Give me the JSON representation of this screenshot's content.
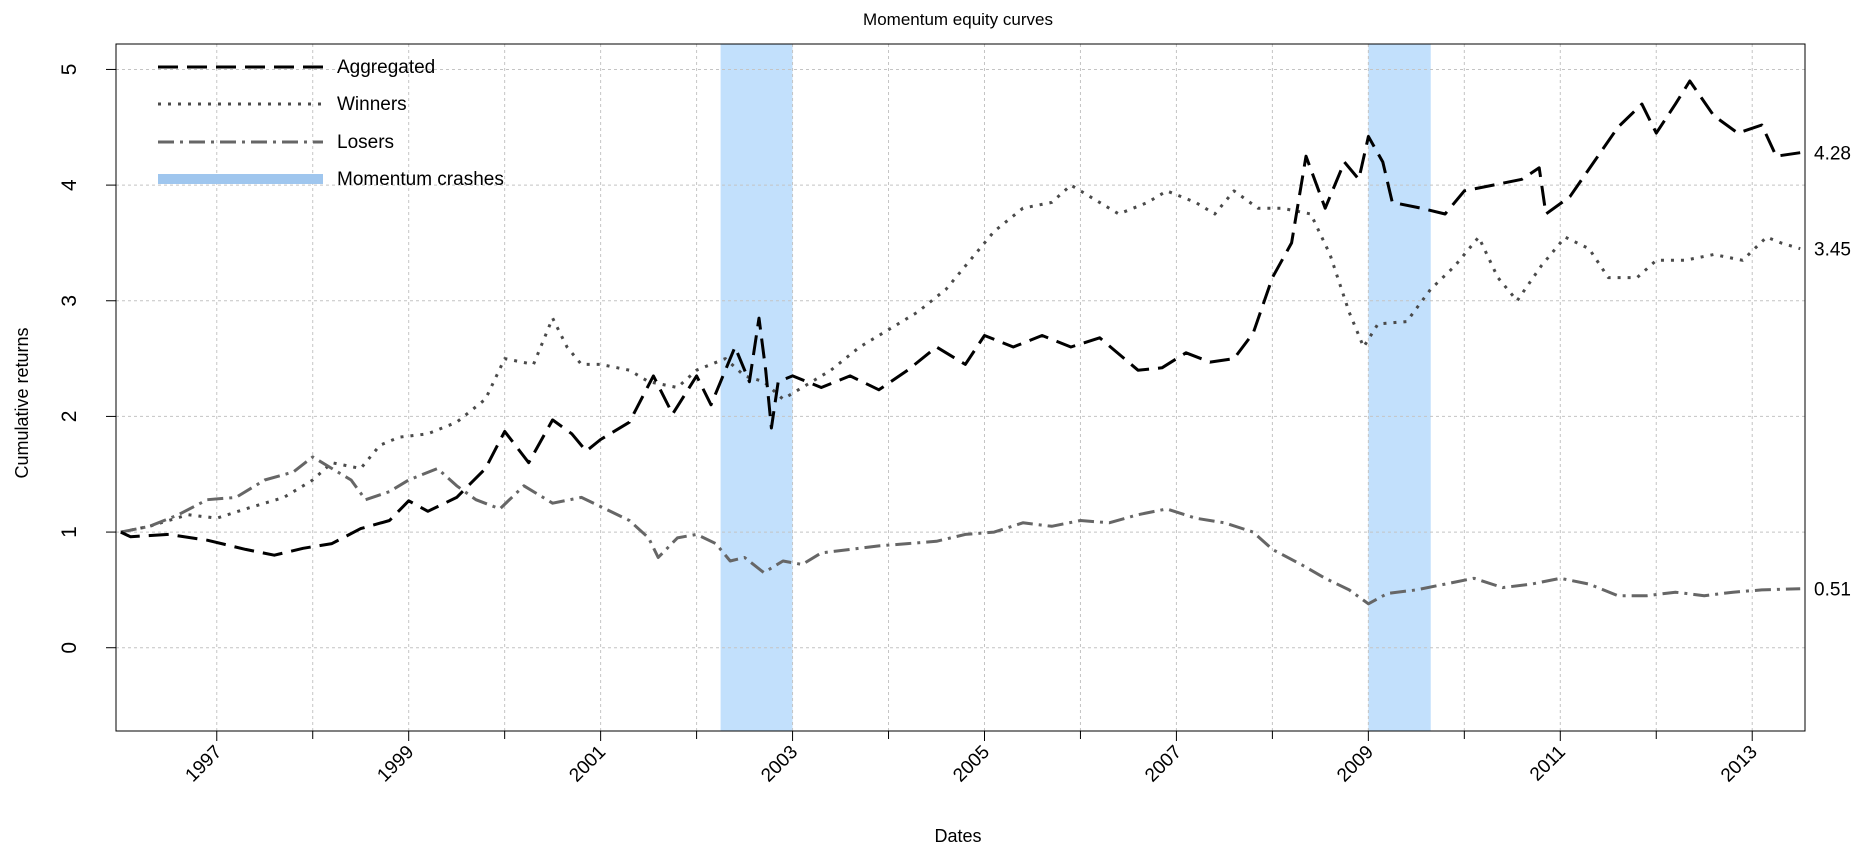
{
  "chart_data": {
    "type": "line",
    "title": "Momentum equity curves",
    "xlabel": "Dates",
    "ylabel": "Cumulative returns",
    "xlim": [
      1995.95,
      2013.55
    ],
    "ylim": [
      -0.72,
      5.22
    ],
    "y_ticks": [
      0,
      1,
      2,
      3,
      4,
      5
    ],
    "x_ticks": [
      1997,
      1999,
      2001,
      2003,
      2005,
      2007,
      2009,
      2011,
      2013
    ],
    "minor_x_ticks": [
      1998,
      2000,
      2002,
      2004,
      2006,
      2008,
      2010,
      2012
    ],
    "grid": true,
    "legend_position": "top-left",
    "legend": [
      "Aggregated",
      "Winners",
      "Losers",
      "Momentum crashes"
    ],
    "crash_periods": [
      [
        2002.25,
        2003.0
      ],
      [
        2009.0,
        2009.65
      ]
    ],
    "crash_color": "#c2e0fc",
    "series": [
      {
        "name": "Aggregated",
        "color": "#000000",
        "dash": "long-dash",
        "end_label": "4.28",
        "points": [
          [
            1996.0,
            1.0
          ],
          [
            1996.1,
            0.96
          ],
          [
            1996.5,
            0.98
          ],
          [
            1996.9,
            0.93
          ],
          [
            1997.3,
            0.85
          ],
          [
            1997.6,
            0.8
          ],
          [
            1997.9,
            0.86
          ],
          [
            1998.2,
            0.9
          ],
          [
            1998.5,
            1.03
          ],
          [
            1998.8,
            1.1
          ],
          [
            1999.0,
            1.27
          ],
          [
            1999.2,
            1.18
          ],
          [
            1999.5,
            1.3
          ],
          [
            1999.8,
            1.55
          ],
          [
            2000.0,
            1.87
          ],
          [
            2000.25,
            1.6
          ],
          [
            2000.5,
            1.97
          ],
          [
            2000.7,
            1.85
          ],
          [
            2000.85,
            1.7
          ],
          [
            2001.0,
            1.8
          ],
          [
            2001.3,
            1.95
          ],
          [
            2001.55,
            2.35
          ],
          [
            2001.75,
            2.02
          ],
          [
            2002.0,
            2.35
          ],
          [
            2002.15,
            2.1
          ],
          [
            2002.4,
            2.6
          ],
          [
            2002.55,
            2.3
          ],
          [
            2002.65,
            2.85
          ],
          [
            2002.72,
            2.4
          ],
          [
            2002.78,
            1.9
          ],
          [
            2002.85,
            2.3
          ],
          [
            2003.0,
            2.35
          ],
          [
            2003.3,
            2.25
          ],
          [
            2003.6,
            2.35
          ],
          [
            2003.9,
            2.23
          ],
          [
            2004.2,
            2.4
          ],
          [
            2004.5,
            2.6
          ],
          [
            2004.8,
            2.45
          ],
          [
            2005.0,
            2.7
          ],
          [
            2005.3,
            2.6
          ],
          [
            2005.6,
            2.7
          ],
          [
            2005.9,
            2.6
          ],
          [
            2006.2,
            2.68
          ],
          [
            2006.6,
            2.4
          ],
          [
            2006.85,
            2.42
          ],
          [
            2007.1,
            2.55
          ],
          [
            2007.35,
            2.47
          ],
          [
            2007.6,
            2.5
          ],
          [
            2007.8,
            2.72
          ],
          [
            2008.0,
            3.2
          ],
          [
            2008.2,
            3.5
          ],
          [
            2008.35,
            4.25
          ],
          [
            2008.55,
            3.8
          ],
          [
            2008.75,
            4.2
          ],
          [
            2008.9,
            4.05
          ],
          [
            2009.0,
            4.42
          ],
          [
            2009.15,
            4.2
          ],
          [
            2009.25,
            3.85
          ],
          [
            2009.55,
            3.8
          ],
          [
            2009.8,
            3.75
          ],
          [
            2010.0,
            3.95
          ],
          [
            2010.3,
            4.0
          ],
          [
            2010.6,
            4.05
          ],
          [
            2010.78,
            4.15
          ],
          [
            2010.85,
            3.75
          ],
          [
            2011.1,
            3.9
          ],
          [
            2011.35,
            4.2
          ],
          [
            2011.6,
            4.5
          ],
          [
            2011.85,
            4.7
          ],
          [
            2012.0,
            4.45
          ],
          [
            2012.2,
            4.7
          ],
          [
            2012.35,
            4.9
          ],
          [
            2012.6,
            4.6
          ],
          [
            2012.85,
            4.45
          ],
          [
            2013.1,
            4.52
          ],
          [
            2013.25,
            4.25
          ],
          [
            2013.5,
            4.28
          ]
        ]
      },
      {
        "name": "Winners",
        "color": "#4a4a4a",
        "dash": "dotted",
        "end_label": "3.45",
        "points": [
          [
            1996.0,
            1.0
          ],
          [
            1996.3,
            1.05
          ],
          [
            1996.7,
            1.15
          ],
          [
            1997.0,
            1.12
          ],
          [
            1997.3,
            1.2
          ],
          [
            1997.7,
            1.3
          ],
          [
            1998.0,
            1.45
          ],
          [
            1998.2,
            1.6
          ],
          [
            1998.5,
            1.55
          ],
          [
            1998.7,
            1.75
          ],
          [
            1998.9,
            1.82
          ],
          [
            1999.2,
            1.85
          ],
          [
            1999.5,
            1.95
          ],
          [
            1999.8,
            2.15
          ],
          [
            2000.0,
            2.5
          ],
          [
            2000.3,
            2.45
          ],
          [
            2000.5,
            2.85
          ],
          [
            2000.65,
            2.6
          ],
          [
            2000.8,
            2.45
          ],
          [
            2001.0,
            2.45
          ],
          [
            2001.3,
            2.4
          ],
          [
            2001.5,
            2.3
          ],
          [
            2001.8,
            2.25
          ],
          [
            2002.0,
            2.4
          ],
          [
            2002.3,
            2.5
          ],
          [
            2002.5,
            2.35
          ],
          [
            2002.7,
            2.3
          ],
          [
            2002.9,
            2.15
          ],
          [
            2003.1,
            2.25
          ],
          [
            2003.4,
            2.4
          ],
          [
            2003.7,
            2.6
          ],
          [
            2004.0,
            2.75
          ],
          [
            2004.3,
            2.9
          ],
          [
            2004.6,
            3.1
          ],
          [
            2004.9,
            3.4
          ],
          [
            2005.1,
            3.6
          ],
          [
            2005.4,
            3.8
          ],
          [
            2005.7,
            3.85
          ],
          [
            2005.9,
            4.0
          ],
          [
            2006.1,
            3.9
          ],
          [
            2006.4,
            3.75
          ],
          [
            2006.7,
            3.85
          ],
          [
            2006.9,
            3.95
          ],
          [
            2007.2,
            3.85
          ],
          [
            2007.4,
            3.75
          ],
          [
            2007.6,
            3.95
          ],
          [
            2007.85,
            3.8
          ],
          [
            2008.1,
            3.8
          ],
          [
            2008.4,
            3.75
          ],
          [
            2008.6,
            3.4
          ],
          [
            2008.8,
            2.9
          ],
          [
            2008.95,
            2.6
          ],
          [
            2009.1,
            2.8
          ],
          [
            2009.4,
            2.82
          ],
          [
            2009.65,
            3.1
          ],
          [
            2009.9,
            3.3
          ],
          [
            2010.15,
            3.55
          ],
          [
            2010.35,
            3.2
          ],
          [
            2010.55,
            3.0
          ],
          [
            2010.8,
            3.3
          ],
          [
            2011.05,
            3.55
          ],
          [
            2011.3,
            3.45
          ],
          [
            2011.5,
            3.2
          ],
          [
            2011.8,
            3.2
          ],
          [
            2012.0,
            3.35
          ],
          [
            2012.3,
            3.35
          ],
          [
            2012.6,
            3.4
          ],
          [
            2012.9,
            3.35
          ],
          [
            2013.15,
            3.55
          ],
          [
            2013.3,
            3.5
          ],
          [
            2013.5,
            3.45
          ]
        ]
      },
      {
        "name": "Losers",
        "color": "#666666",
        "dash": "dash-dot",
        "end_label": "0.51",
        "points": [
          [
            1996.0,
            1.0
          ],
          [
            1996.3,
            1.05
          ],
          [
            1996.6,
            1.15
          ],
          [
            1996.9,
            1.28
          ],
          [
            1997.2,
            1.3
          ],
          [
            1997.5,
            1.45
          ],
          [
            1997.8,
            1.52
          ],
          [
            1998.0,
            1.65
          ],
          [
            1998.2,
            1.55
          ],
          [
            1998.4,
            1.45
          ],
          [
            1998.55,
            1.28
          ],
          [
            1998.8,
            1.35
          ],
          [
            1999.0,
            1.45
          ],
          [
            1999.3,
            1.55
          ],
          [
            1999.5,
            1.4
          ],
          [
            1999.7,
            1.28
          ],
          [
            1999.95,
            1.2
          ],
          [
            2000.2,
            1.4
          ],
          [
            2000.5,
            1.25
          ],
          [
            2000.8,
            1.3
          ],
          [
            2001.0,
            1.22
          ],
          [
            2001.3,
            1.1
          ],
          [
            2001.5,
            0.95
          ],
          [
            2001.6,
            0.78
          ],
          [
            2001.8,
            0.95
          ],
          [
            2002.0,
            0.98
          ],
          [
            2002.2,
            0.9
          ],
          [
            2002.35,
            0.75
          ],
          [
            2002.5,
            0.78
          ],
          [
            2002.7,
            0.65
          ],
          [
            2002.9,
            0.75
          ],
          [
            2003.1,
            0.72
          ],
          [
            2003.3,
            0.82
          ],
          [
            2003.6,
            0.85
          ],
          [
            2003.9,
            0.88
          ],
          [
            2004.2,
            0.9
          ],
          [
            2004.5,
            0.92
          ],
          [
            2004.8,
            0.98
          ],
          [
            2005.1,
            1.0
          ],
          [
            2005.4,
            1.08
          ],
          [
            2005.7,
            1.05
          ],
          [
            2006.0,
            1.1
          ],
          [
            2006.3,
            1.08
          ],
          [
            2006.6,
            1.15
          ],
          [
            2006.9,
            1.2
          ],
          [
            2007.2,
            1.12
          ],
          [
            2007.5,
            1.08
          ],
          [
            2007.8,
            1.0
          ],
          [
            2008.0,
            0.85
          ],
          [
            2008.3,
            0.72
          ],
          [
            2008.55,
            0.6
          ],
          [
            2008.8,
            0.5
          ],
          [
            2009.0,
            0.38
          ],
          [
            2009.2,
            0.47
          ],
          [
            2009.5,
            0.5
          ],
          [
            2009.8,
            0.55
          ],
          [
            2010.1,
            0.6
          ],
          [
            2010.4,
            0.52
          ],
          [
            2010.7,
            0.55
          ],
          [
            2011.0,
            0.6
          ],
          [
            2011.3,
            0.55
          ],
          [
            2011.6,
            0.45
          ],
          [
            2011.9,
            0.45
          ],
          [
            2012.2,
            0.48
          ],
          [
            2012.5,
            0.45
          ],
          [
            2012.8,
            0.48
          ],
          [
            2013.1,
            0.5
          ],
          [
            2013.5,
            0.51
          ]
        ]
      }
    ]
  }
}
